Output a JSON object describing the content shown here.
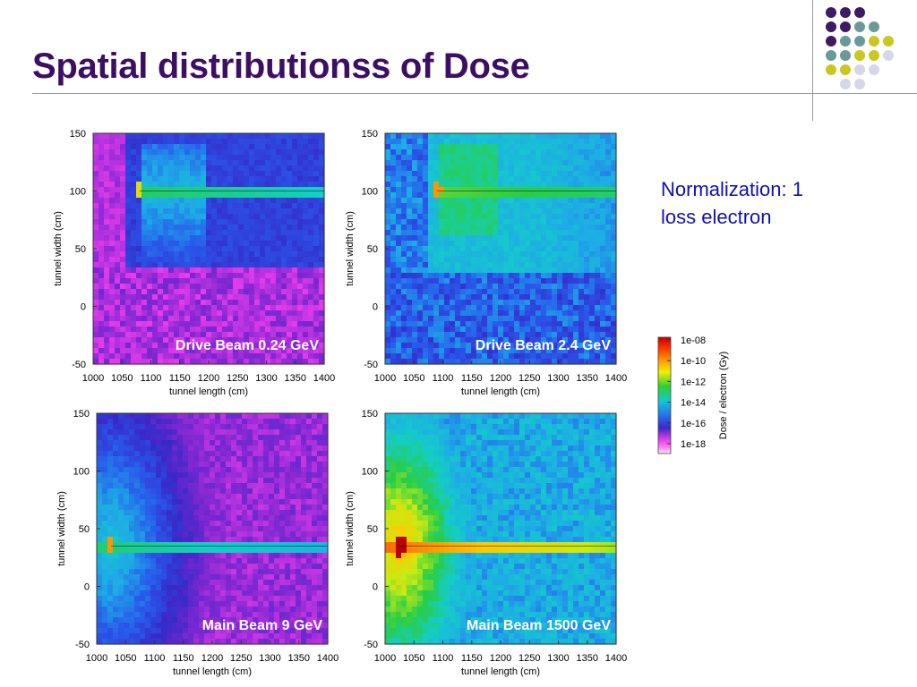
{
  "slide": {
    "title": "Spatial distributionss of Dose",
    "normalization_line1": "Normalization: 1",
    "normalization_line2": "loss electron"
  },
  "colors": {
    "title": "#3d0f63",
    "normalization_text": "#1010b0",
    "deco_purple": "#3d1a63",
    "deco_teal": "#6a9a98",
    "deco_yellow": "#c8c81e",
    "deco_lavender": "#d6d6ea"
  },
  "colorbar": {
    "label": "Dose / electron (Gy)",
    "ticks": [
      "1e-08",
      "1e-10",
      "1e-12",
      "1e-14",
      "1e-16",
      "1e-18"
    ]
  },
  "chart_data": [
    {
      "type": "heatmap",
      "annotation": "Drive Beam 0.24 GeV",
      "xlabel": "tunnel length (cm)",
      "ylabel": "tunnel width (cm)",
      "xlim": [
        1000,
        1400
      ],
      "ylim": [
        -50,
        150
      ],
      "x_ticks": [
        "1000",
        "1050",
        "1100",
        "1150",
        "1200",
        "1250",
        "1300",
        "1350",
        "1400"
      ],
      "y_ticks": [
        "150",
        "100",
        "50",
        "0",
        "-50"
      ],
      "source": [
        1080,
        100
      ],
      "beam_y": 100
    },
    {
      "type": "heatmap",
      "annotation": "Drive Beam 2.4 GeV",
      "xlabel": "tunnel length (cm)",
      "ylabel": "tunnel width (cm)",
      "xlim": [
        1000,
        1400
      ],
      "ylim": [
        -50,
        150
      ],
      "x_ticks": [
        "1000",
        "1050",
        "1100",
        "1150",
        "1200",
        "1250",
        "1300",
        "1350",
        "1400"
      ],
      "y_ticks": [
        "150",
        "100",
        "50",
        "0",
        "-50"
      ],
      "source": [
        1090,
        100
      ],
      "beam_y": 100
    },
    {
      "type": "heatmap",
      "annotation": "Main Beam 9 GeV",
      "xlabel": "tunnel length (cm)",
      "ylabel": "tunnel width (cm)",
      "xlim": [
        1000,
        1400
      ],
      "ylim": [
        -50,
        150
      ],
      "x_ticks": [
        "1000",
        "1050",
        "1100",
        "1150",
        "1200",
        "1250",
        "1300",
        "1350",
        "1400"
      ],
      "y_ticks": [
        "150",
        "100",
        "50",
        "0",
        "-50"
      ],
      "source": [
        1025,
        35
      ],
      "beam_y": 35
    },
    {
      "type": "heatmap",
      "annotation": "Main Beam 1500  GeV",
      "xlabel": "tunnel length (cm)",
      "ylabel": "tunnel width (cm)",
      "xlim": [
        1000,
        1400
      ],
      "ylim": [
        -50,
        150
      ],
      "x_ticks": [
        "1000",
        "1050",
        "1100",
        "1150",
        "1200",
        "1250",
        "1300",
        "1350",
        "1400"
      ],
      "y_ticks": [
        "150",
        "100",
        "50",
        "0",
        "-50"
      ],
      "source": [
        1025,
        35
      ],
      "beam_y": 35
    }
  ]
}
